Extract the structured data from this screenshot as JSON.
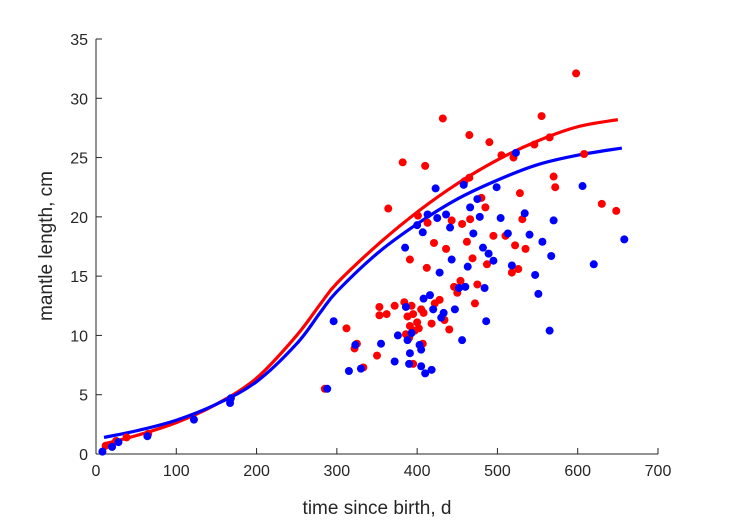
{
  "chart_data": {
    "type": "scatter",
    "xlabel": "time since birth, d",
    "ylabel": "mantle length, cm",
    "xlim": [
      0,
      700
    ],
    "ylim": [
      0,
      35
    ],
    "xticks": [
      0,
      100,
      200,
      300,
      400,
      500,
      600,
      700
    ],
    "yticks": [
      0,
      5,
      10,
      15,
      20,
      25,
      30,
      35
    ],
    "grid": false,
    "series": [
      {
        "color": "#ff0000",
        "points": [
          [
            12,
            0.7
          ],
          [
            25,
            1.1
          ],
          [
            38,
            1.4
          ],
          [
            65,
            1.7
          ],
          [
            285,
            5.5
          ],
          [
            312,
            10.6
          ],
          [
            322,
            8.9
          ],
          [
            325,
            9.3
          ],
          [
            333,
            7.3
          ],
          [
            350,
            8.3
          ],
          [
            353,
            11.7
          ],
          [
            353,
            12.4
          ],
          [
            362,
            11.8
          ],
          [
            364,
            20.7
          ],
          [
            372,
            12.5
          ],
          [
            382,
            24.6
          ],
          [
            384,
            12.8
          ],
          [
            386,
            10.1
          ],
          [
            388,
            11.6
          ],
          [
            390,
            9.8
          ],
          [
            391,
            10.8
          ],
          [
            391,
            16.4
          ],
          [
            393,
            12.5
          ],
          [
            395,
            7.6
          ],
          [
            395,
            11.8
          ],
          [
            397,
            10.4
          ],
          [
            400,
            11.1
          ],
          [
            401,
            20.1
          ],
          [
            402,
            10.6
          ],
          [
            405,
            12.2
          ],
          [
            407,
            9.3
          ],
          [
            408,
            11.9
          ],
          [
            410,
            24.3
          ],
          [
            412,
            15.7
          ],
          [
            413,
            19.5
          ],
          [
            418,
            11.0
          ],
          [
            421,
            17.8
          ],
          [
            422,
            12.7
          ],
          [
            428,
            13.0
          ],
          [
            432,
            28.3
          ],
          [
            434,
            11.3
          ],
          [
            436,
            17.3
          ],
          [
            440,
            10.5
          ],
          [
            443,
            19.7
          ],
          [
            446,
            14.1
          ],
          [
            450,
            13.6
          ],
          [
            454,
            14.6
          ],
          [
            456,
            19.4
          ],
          [
            459,
            23.0
          ],
          [
            462,
            17.9
          ],
          [
            465,
            26.9
          ],
          [
            465,
            23.3
          ],
          [
            466,
            19.8
          ],
          [
            469,
            16.5
          ],
          [
            472,
            12.7
          ],
          [
            475,
            14.3
          ],
          [
            480,
            21.6
          ],
          [
            485,
            20.8
          ],
          [
            487,
            16.0
          ],
          [
            490,
            26.3
          ],
          [
            495,
            18.4
          ],
          [
            505,
            25.2
          ],
          [
            510,
            18.4
          ],
          [
            518,
            15.3
          ],
          [
            520,
            25.0
          ],
          [
            522,
            17.6
          ],
          [
            526,
            15.6
          ],
          [
            528,
            22.0
          ],
          [
            531,
            19.8
          ],
          [
            535,
            17.3
          ],
          [
            546,
            26.1
          ],
          [
            555,
            28.5
          ],
          [
            565,
            26.7
          ],
          [
            570,
            23.4
          ],
          [
            572,
            22.5
          ],
          [
            598,
            32.1
          ],
          [
            608,
            25.3
          ],
          [
            630,
            21.1
          ],
          [
            648,
            20.5
          ]
        ],
        "curve": [
          [
            10,
            0.85
          ],
          [
            50,
            1.55
          ],
          [
            100,
            2.65
          ],
          [
            150,
            4.2
          ],
          [
            200,
            6.4
          ],
          [
            250,
            10.0
          ],
          [
            280,
            12.7
          ],
          [
            300,
            14.4
          ],
          [
            350,
            17.6
          ],
          [
            400,
            20.4
          ],
          [
            450,
            22.8
          ],
          [
            500,
            24.8
          ],
          [
            550,
            26.4
          ],
          [
            600,
            27.6
          ],
          [
            650,
            28.2
          ]
        ]
      },
      {
        "color": "#0000ff",
        "points": [
          [
            8,
            0.2
          ],
          [
            20,
            0.6
          ],
          [
            28,
            1.0
          ],
          [
            64,
            1.5
          ],
          [
            122,
            2.9
          ],
          [
            167,
            4.3
          ],
          [
            168,
            4.7
          ],
          [
            288,
            5.5
          ],
          [
            296,
            11.2
          ],
          [
            315,
            7.0
          ],
          [
            323,
            9.2
          ],
          [
            330,
            7.2
          ],
          [
            355,
            9.3
          ],
          [
            372,
            7.8
          ],
          [
            376,
            10.0
          ],
          [
            385,
            17.4
          ],
          [
            386,
            12.4
          ],
          [
            388,
            9.6
          ],
          [
            390,
            7.6
          ],
          [
            391,
            8.5
          ],
          [
            393,
            10.2
          ],
          [
            400,
            19.3
          ],
          [
            403,
            9.2
          ],
          [
            405,
            7.4
          ],
          [
            405,
            8.8
          ],
          [
            407,
            18.7
          ],
          [
            408,
            13.1
          ],
          [
            410,
            6.8
          ],
          [
            413,
            20.2
          ],
          [
            416,
            13.4
          ],
          [
            418,
            7.1
          ],
          [
            420,
            12.2
          ],
          [
            423,
            22.4
          ],
          [
            425,
            19.9
          ],
          [
            428,
            15.3
          ],
          [
            430,
            11.5
          ],
          [
            433,
            11.9
          ],
          [
            436,
            20.2
          ],
          [
            441,
            19.1
          ],
          [
            443,
            16.4
          ],
          [
            447,
            12.2
          ],
          [
            452,
            14.0
          ],
          [
            456,
            9.6
          ],
          [
            458,
            22.7
          ],
          [
            460,
            14.1
          ],
          [
            463,
            15.8
          ],
          [
            466,
            20.8
          ],
          [
            470,
            18.6
          ],
          [
            475,
            21.5
          ],
          [
            478,
            20.0
          ],
          [
            482,
            17.4
          ],
          [
            484,
            14.0
          ],
          [
            486,
            11.2
          ],
          [
            489,
            16.9
          ],
          [
            495,
            16.3
          ],
          [
            499,
            22.5
          ],
          [
            504,
            19.9
          ],
          [
            513,
            18.6
          ],
          [
            518,
            15.9
          ],
          [
            523,
            25.4
          ],
          [
            534,
            20.3
          ],
          [
            540,
            18.5
          ],
          [
            547,
            15.1
          ],
          [
            551,
            13.5
          ],
          [
            556,
            17.9
          ],
          [
            565,
            10.4
          ],
          [
            567,
            16.7
          ],
          [
            570,
            19.7
          ],
          [
            606,
            22.6
          ],
          [
            620,
            16.0
          ],
          [
            658,
            18.1
          ]
        ],
        "curve": [
          [
            10,
            1.4
          ],
          [
            50,
            1.95
          ],
          [
            100,
            2.85
          ],
          [
            150,
            4.2
          ],
          [
            200,
            6.1
          ],
          [
            250,
            9.3
          ],
          [
            280,
            12.0
          ],
          [
            300,
            13.7
          ],
          [
            350,
            16.9
          ],
          [
            400,
            19.4
          ],
          [
            450,
            21.5
          ],
          [
            500,
            23.1
          ],
          [
            550,
            24.4
          ],
          [
            600,
            25.2
          ],
          [
            655,
            25.8
          ]
        ]
      }
    ]
  }
}
